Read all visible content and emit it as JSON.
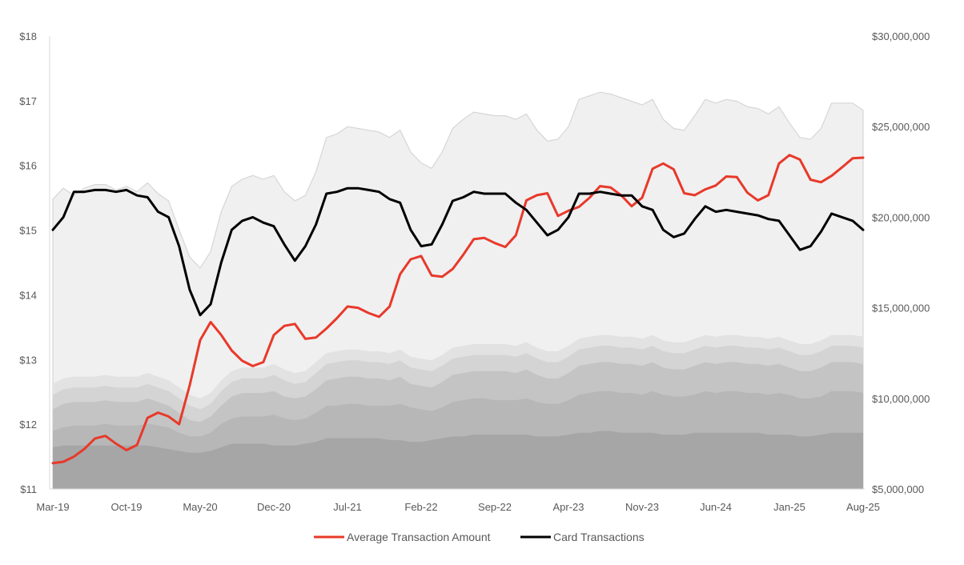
{
  "chart_data": {
    "type": "line",
    "title": "",
    "xlabel": "",
    "ylabel_left": "",
    "ylabel_right": "",
    "x_tick_labels": [
      "Mar-19",
      "Oct-19",
      "May-20",
      "Dec-20",
      "Jul-21",
      "Feb-22",
      "Sep-22",
      "Apr-23",
      "Nov-23",
      "Jun-24",
      "Jan-25",
      "Aug-25"
    ],
    "x_tick_month_index": [
      0,
      7,
      14,
      21,
      28,
      35,
      42,
      49,
      56,
      63,
      70,
      77
    ],
    "n_months": 78,
    "y_left": {
      "min": 11,
      "max": 18,
      "ticks": [
        11,
        12,
        13,
        14,
        15,
        16,
        17,
        18
      ],
      "tick_labels": [
        "$11",
        "$12",
        "$13",
        "$14",
        "$15",
        "$16",
        "$17",
        "$18"
      ]
    },
    "y_right": {
      "min": 5000000,
      "max": 30000000,
      "ticks": [
        5000000,
        10000000,
        15000000,
        20000000,
        25000000,
        30000000
      ],
      "tick_labels": [
        "$5,000,000",
        "$10,000,000",
        "$15,000,000",
        "$20,000,000",
        "$25,000,000",
        "$30,000,000"
      ]
    },
    "series": [
      {
        "name": "Average Transaction Amount",
        "axis": "left",
        "color": "#e8392a",
        "values": [
          11.4,
          11.42,
          11.5,
          11.62,
          11.78,
          11.82,
          11.7,
          11.6,
          11.68,
          12.1,
          12.18,
          12.12,
          12.0,
          12.6,
          13.3,
          13.58,
          13.38,
          13.14,
          12.98,
          12.9,
          12.96,
          13.38,
          13.52,
          13.55,
          13.32,
          13.34,
          13.48,
          13.64,
          13.82,
          13.8,
          13.72,
          13.66,
          13.82,
          14.32,
          14.55,
          14.6,
          14.3,
          14.28,
          14.4,
          14.62,
          14.86,
          14.88,
          14.8,
          14.74,
          14.92,
          15.46,
          15.54,
          15.57,
          15.22,
          15.3,
          15.36,
          15.5,
          15.68,
          15.66,
          15.54,
          15.37,
          15.5,
          15.95,
          16.03,
          15.94,
          15.57,
          15.54,
          15.63,
          15.69,
          15.83,
          15.82,
          15.58,
          15.46,
          15.54,
          16.03,
          16.16,
          16.09,
          15.78,
          15.74,
          15.84,
          15.97,
          16.11,
          16.12
        ]
      },
      {
        "name": "Card Transactions",
        "axis": "right",
        "color": "#000000",
        "values": [
          19300000,
          20000000,
          21400000,
          21400000,
          21500000,
          21500000,
          21400000,
          21500000,
          21200000,
          21100000,
          20300000,
          20000000,
          18400000,
          16000000,
          14600000,
          15200000,
          17500000,
          19300000,
          19800000,
          20000000,
          19700000,
          19500000,
          18500000,
          17600000,
          18400000,
          19600000,
          21300000,
          21400000,
          21600000,
          21600000,
          21500000,
          21400000,
          21000000,
          20800000,
          19300000,
          18400000,
          18500000,
          19600000,
          20900000,
          21100000,
          21400000,
          21300000,
          21300000,
          21300000,
          20800000,
          20400000,
          19700000,
          19000000,
          19300000,
          20000000,
          21300000,
          21300000,
          21400000,
          21300000,
          21200000,
          21200000,
          20600000,
          20400000,
          19300000,
          18900000,
          19100000,
          19900000,
          20600000,
          20300000,
          20400000,
          20300000,
          20200000,
          20100000,
          19900000,
          19800000,
          19000000,
          18200000,
          18400000,
          19200000,
          20200000,
          20000000,
          19800000,
          19300000
        ]
      }
    ],
    "background_areas": {
      "note": "stacked light gray area bands behind the lines (right axis)",
      "color": "#a6a6a6",
      "upper_envelope": [
        21000000,
        21600000,
        21200000,
        21600000,
        21800000,
        21800000,
        21500000,
        21700000,
        21400000,
        21900000,
        21300000,
        20900000,
        19300000,
        17800000,
        17200000,
        18100000,
        20300000,
        21700000,
        22100000,
        22300000,
        22100000,
        22300000,
        21400000,
        20900000,
        21200000,
        22500000,
        24400000,
        24600000,
        25000000,
        24900000,
        24800000,
        24700000,
        24400000,
        24800000,
        23600000,
        23000000,
        22700000,
        23600000,
        24900000,
        25400000,
        25800000,
        25700000,
        25600000,
        25600000,
        25400000,
        25700000,
        24800000,
        24200000,
        24300000,
        25000000,
        26500000,
        26700000,
        26900000,
        26800000,
        26600000,
        26400000,
        26200000,
        26500000,
        25400000,
        24900000,
        24800000,
        25600000,
        26500000,
        26300000,
        26500000,
        26400000,
        26100000,
        26000000,
        25700000,
        26100000,
        25200000,
        24400000,
        24300000,
        24900000,
        26300000,
        26300000,
        26300000,
        25900000
      ],
      "band_tops": [
        [
          7300000,
          7400000,
          7400000,
          7400000,
          7400000,
          7400000,
          7400000,
          7400000,
          7400000,
          7400000,
          7300000,
          7200000,
          7100000,
          7000000,
          7000000,
          7100000,
          7300000,
          7500000,
          7500000,
          7500000,
          7500000,
          7400000,
          7400000,
          7400000,
          7500000,
          7600000,
          7800000,
          7800000,
          7800000,
          7800000,
          7800000,
          7800000,
          7700000,
          7700000,
          7600000,
          7600000,
          7700000,
          7800000,
          7900000,
          7900000,
          8000000,
          8000000,
          8000000,
          8000000,
          8000000,
          8000000,
          7900000,
          7900000,
          7900000,
          8000000,
          8100000,
          8100000,
          8200000,
          8200000,
          8100000,
          8100000,
          8100000,
          8100000,
          8000000,
          8000000,
          8000000,
          8100000,
          8100000,
          8100000,
          8100000,
          8100000,
          8100000,
          8100000,
          8000000,
          8000000,
          8000000,
          7900000,
          7900000,
          8000000,
          8100000,
          8100000,
          8100000,
          8100000
        ],
        [
          8200000,
          8400000,
          8500000,
          8500000,
          8500000,
          8600000,
          8500000,
          8500000,
          8500000,
          8600000,
          8500000,
          8400000,
          8100000,
          7900000,
          7900000,
          8100000,
          8600000,
          8900000,
          9000000,
          9000000,
          9000000,
          9100000,
          8900000,
          8800000,
          8900000,
          9200000,
          9600000,
          9600000,
          9700000,
          9700000,
          9600000,
          9600000,
          9600000,
          9700000,
          9500000,
          9400000,
          9300000,
          9500000,
          9800000,
          9900000,
          10000000,
          10000000,
          9900000,
          9900000,
          9900000,
          10000000,
          9800000,
          9700000,
          9700000,
          9900000,
          10200000,
          10300000,
          10400000,
          10400000,
          10300000,
          10300000,
          10200000,
          10400000,
          10200000,
          10100000,
          10100000,
          10200000,
          10400000,
          10300000,
          10400000,
          10400000,
          10300000,
          10300000,
          10200000,
          10300000,
          10200000,
          10000000,
          10000000,
          10100000,
          10400000,
          10400000,
          10400000,
          10300000
        ],
        [
          9400000,
          9700000,
          9800000,
          9800000,
          9800000,
          9900000,
          9800000,
          9800000,
          9800000,
          10000000,
          9800000,
          9600000,
          9200000,
          8800000,
          8700000,
          9000000,
          9600000,
          10100000,
          10300000,
          10300000,
          10300000,
          10400000,
          10100000,
          10000000,
          10100000,
          10500000,
          11000000,
          11100000,
          11200000,
          11200000,
          11100000,
          11100000,
          11000000,
          11200000,
          10800000,
          10700000,
          10600000,
          10900000,
          11300000,
          11400000,
          11500000,
          11500000,
          11500000,
          11500000,
          11400000,
          11600000,
          11300000,
          11100000,
          11100000,
          11400000,
          11800000,
          11900000,
          12000000,
          12000000,
          11900000,
          11900000,
          11800000,
          12000000,
          11700000,
          11600000,
          11600000,
          11800000,
          12000000,
          11900000,
          12000000,
          12000000,
          11900000,
          11900000,
          11800000,
          11900000,
          11700000,
          11500000,
          11500000,
          11700000,
          12000000,
          12000000,
          12000000,
          11900000
        ],
        [
          10200000,
          10500000,
          10600000,
          10600000,
          10600000,
          10700000,
          10600000,
          10600000,
          10600000,
          10800000,
          10600000,
          10400000,
          10000000,
          9600000,
          9400000,
          9700000,
          10400000,
          10900000,
          11100000,
          11100000,
          11100000,
          11300000,
          11000000,
          10800000,
          10900000,
          11400000,
          11900000,
          12000000,
          12100000,
          12100000,
          12000000,
          12000000,
          11900000,
          12100000,
          11700000,
          11600000,
          11500000,
          11800000,
          12200000,
          12300000,
          12400000,
          12400000,
          12400000,
          12400000,
          12300000,
          12500000,
          12200000,
          12000000,
          12000000,
          12300000,
          12700000,
          12800000,
          12900000,
          12900000,
          12800000,
          12800000,
          12700000,
          12900000,
          12600000,
          12500000,
          12500000,
          12700000,
          12900000,
          12800000,
          12900000,
          12900000,
          12800000,
          12800000,
          12700000,
          12800000,
          12600000,
          12400000,
          12400000,
          12600000,
          12900000,
          12900000,
          12900000,
          12800000
        ],
        [
          10800000,
          11100000,
          11200000,
          11200000,
          11200000,
          11300000,
          11200000,
          11200000,
          11200000,
          11400000,
          11200000,
          11000000,
          10600000,
          10200000,
          10000000,
          10300000,
          11000000,
          11500000,
          11700000,
          11700000,
          11700000,
          11900000,
          11600000,
          11400000,
          11500000,
          12000000,
          12500000,
          12600000,
          12700000,
          12700000,
          12600000,
          12600000,
          12500000,
          12700000,
          12300000,
          12200000,
          12100000,
          12400000,
          12800000,
          12900000,
          13000000,
          13000000,
          13000000,
          13000000,
          12900000,
          13100000,
          12800000,
          12600000,
          12600000,
          12900000,
          13300000,
          13400000,
          13500000,
          13500000,
          13400000,
          13400000,
          13300000,
          13500000,
          13200000,
          13100000,
          13100000,
          13300000,
          13500000,
          13400000,
          13500000,
          13500000,
          13400000,
          13400000,
          13300000,
          13400000,
          13200000,
          13000000,
          13000000,
          13200000,
          13500000,
          13500000,
          13500000,
          13400000
        ]
      ]
    }
  }
}
